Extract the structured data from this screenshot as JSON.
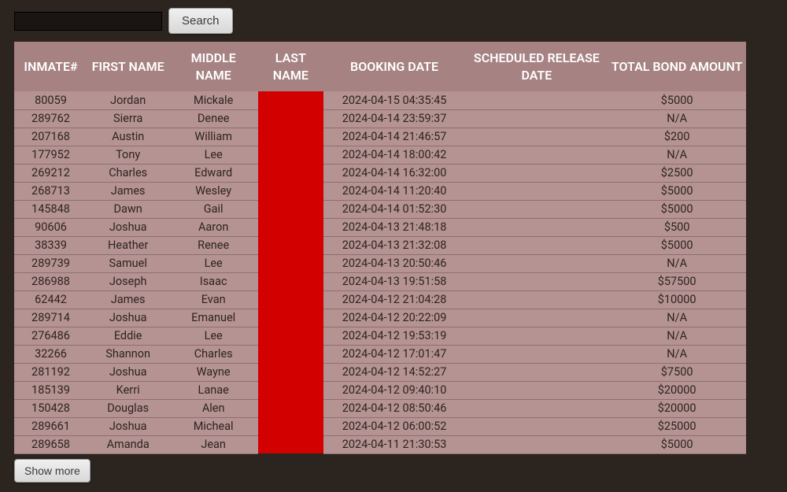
{
  "search": {
    "button_label": "Search",
    "input_value": ""
  },
  "table": {
    "columns": [
      {
        "key": "inmate",
        "label": "INMATE#",
        "class": "col-inmate"
      },
      {
        "key": "first",
        "label": "FIRST NAME",
        "class": "col-first"
      },
      {
        "key": "middle",
        "label": "MIDDLE NAME",
        "class": "col-middle"
      },
      {
        "key": "last",
        "label": "LAST NAME",
        "class": "col-last",
        "redacted": true
      },
      {
        "key": "booking",
        "label": "BOOKING DATE",
        "class": "col-booking"
      },
      {
        "key": "release",
        "label": "SCHEDULED RELEASE DATE",
        "class": "col-release"
      },
      {
        "key": "bond",
        "label": "TOTAL BOND AMOUNT",
        "class": "col-bond"
      }
    ],
    "rows": [
      {
        "inmate": "80059",
        "first": "Jordan",
        "middle": "Mickale",
        "last": "",
        "booking": "2024-04-15 04:35:45",
        "release": "",
        "bond": "$5000"
      },
      {
        "inmate": "289762",
        "first": "Sierra",
        "middle": "Denee",
        "last": "",
        "booking": "2024-04-14 23:59:37",
        "release": "",
        "bond": "N/A"
      },
      {
        "inmate": "207168",
        "first": "Austin",
        "middle": "William",
        "last": "",
        "booking": "2024-04-14 21:46:57",
        "release": "",
        "bond": "$200"
      },
      {
        "inmate": "177952",
        "first": "Tony",
        "middle": "Lee",
        "last": "",
        "booking": "2024-04-14 18:00:42",
        "release": "",
        "bond": "N/A"
      },
      {
        "inmate": "269212",
        "first": "Charles",
        "middle": "Edward",
        "last": "",
        "booking": "2024-04-14 16:32:00",
        "release": "",
        "bond": "$2500"
      },
      {
        "inmate": "268713",
        "first": "James",
        "middle": "Wesley",
        "last": "",
        "booking": "2024-04-14 11:20:40",
        "release": "",
        "bond": "$5000"
      },
      {
        "inmate": "145848",
        "first": "Dawn",
        "middle": "Gail",
        "last": "",
        "booking": "2024-04-14 01:52:30",
        "release": "",
        "bond": "$5000"
      },
      {
        "inmate": "90606",
        "first": "Joshua",
        "middle": "Aaron",
        "last": "",
        "booking": "2024-04-13 21:48:18",
        "release": "",
        "bond": "$500"
      },
      {
        "inmate": "38339",
        "first": "Heather",
        "middle": "Renee",
        "last": "",
        "booking": "2024-04-13 21:32:08",
        "release": "",
        "bond": "$5000"
      },
      {
        "inmate": "289739",
        "first": "Samuel",
        "middle": "Lee",
        "last": "",
        "booking": "2024-04-13 20:50:46",
        "release": "",
        "bond": "N/A"
      },
      {
        "inmate": "286988",
        "first": "Joseph",
        "middle": "Isaac",
        "last": "",
        "booking": "2024-04-13 19:51:58",
        "release": "",
        "bond": "$57500"
      },
      {
        "inmate": "62442",
        "first": "James",
        "middle": "Evan",
        "last": "",
        "booking": "2024-04-12 21:04:28",
        "release": "",
        "bond": "$10000"
      },
      {
        "inmate": "289714",
        "first": "Joshua",
        "middle": "Emanuel",
        "last": "",
        "booking": "2024-04-12 20:22:09",
        "release": "",
        "bond": "N/A"
      },
      {
        "inmate": "276486",
        "first": "Eddie",
        "middle": "Lee",
        "last": "",
        "booking": "2024-04-12 19:53:19",
        "release": "",
        "bond": "N/A"
      },
      {
        "inmate": "32266",
        "first": "Shannon",
        "middle": "Charles",
        "last": "",
        "booking": "2024-04-12 17:01:47",
        "release": "",
        "bond": "N/A"
      },
      {
        "inmate": "281192",
        "first": "Joshua",
        "middle": "Wayne",
        "last": "",
        "booking": "2024-04-12 14:52:27",
        "release": "",
        "bond": "$7500"
      },
      {
        "inmate": "185139",
        "first": "Kerri",
        "middle": "Lanae",
        "last": "",
        "booking": "2024-04-12 09:40:10",
        "release": "",
        "bond": "$20000"
      },
      {
        "inmate": "150428",
        "first": "Douglas",
        "middle": "Alen",
        "last": "",
        "booking": "2024-04-12 08:50:46",
        "release": "",
        "bond": "$20000"
      },
      {
        "inmate": "289661",
        "first": "Joshua",
        "middle": "Micheal",
        "last": "",
        "booking": "2024-04-12 06:00:52",
        "release": "",
        "bond": "$25000"
      },
      {
        "inmate": "289658",
        "first": "Amanda",
        "middle": "Jean",
        "last": "",
        "booking": "2024-04-11 21:30:53",
        "release": "",
        "bond": "$5000"
      }
    ]
  },
  "footer": {
    "show_more_label": "Show more"
  },
  "colors": {
    "page_bg": "#2b241f",
    "header_bg": "#a68282",
    "row_bg": "#b59393",
    "row_border": "#8d6e6e",
    "redacted_bg": "#d30000",
    "header_text": "#ffffff",
    "cell_text": "#2d2420"
  }
}
